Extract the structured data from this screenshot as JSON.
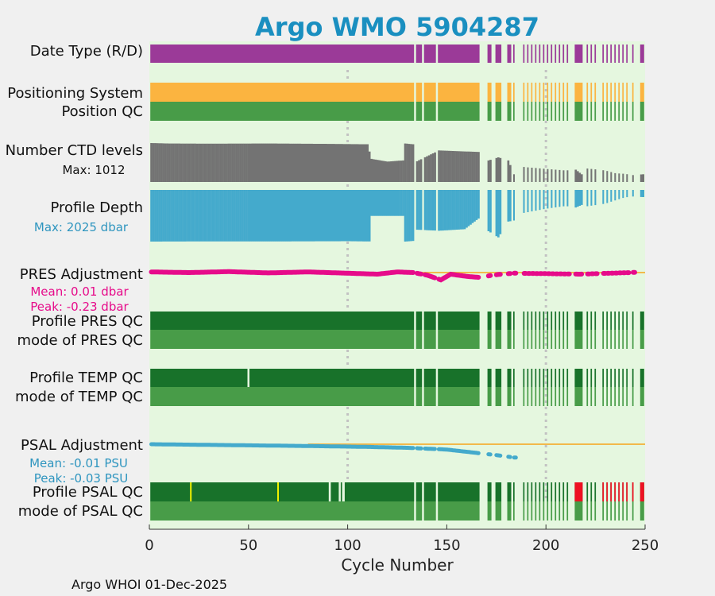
{
  "chart_data": {
    "type": "bar",
    "title": "Argo WMO 5904287",
    "xlabel": "Cycle Number",
    "xlim": [
      0,
      250
    ],
    "xticks": [
      0,
      50,
      100,
      150,
      200,
      250
    ],
    "vlines_at": [
      100,
      200
    ],
    "footer": "Argo WHOI 01-Dec-2025",
    "tracks": [
      {
        "key": "date_type",
        "label": "Date Type (R/D)",
        "color": "#9b3a98"
      },
      {
        "key": "positioning_system",
        "label": "Positioning System",
        "color": "#fbb440"
      },
      {
        "key": "position_qc",
        "label": "Position QC",
        "color": "#489c48"
      },
      {
        "key": "ctd_levels",
        "label": "Number CTD levels",
        "annotation": "Max: 1012",
        "color": "#737373",
        "max": 1012
      },
      {
        "key": "profile_depth",
        "label": "Profile Depth",
        "annotation": "Max: 2025 dbar",
        "annotation_color": "#2e95bf",
        "color": "#44aacc",
        "max": 2025
      },
      {
        "key": "pres_adjustment",
        "label": "PRES Adjustment",
        "annotation_lines": [
          "Mean: 0.01 dbar",
          "Peak: -0.23 dbar"
        ],
        "annotation_color": "#e60b8a",
        "color": "#e60b8a",
        "reference_color": "#f2b94b",
        "mean": 0.01,
        "peak": -0.23
      },
      {
        "key": "profile_pres_qc",
        "label": "Profile PRES QC",
        "color": "#18722a"
      },
      {
        "key": "mode_pres_qc",
        "label": "mode of PRES QC",
        "color": "#489c48"
      },
      {
        "key": "profile_temp_qc",
        "label": "Profile TEMP QC",
        "color": "#18722a"
      },
      {
        "key": "mode_temp_qc",
        "label": "mode of TEMP QC",
        "color": "#489c48"
      },
      {
        "key": "psal_adjustment",
        "label": "PSAL Adjustment",
        "annotation_lines": [
          "Mean: -0.01 PSU",
          "Peak: -0.03 PSU"
        ],
        "annotation_color": "#2e95bf",
        "color": "#44aacc",
        "reference_color": "#f2b94b",
        "mean": -0.01,
        "peak": -0.03
      },
      {
        "key": "profile_psal_qc",
        "label": "Profile PSAL QC",
        "color": "#18722a",
        "flag_colors": {
          "yellow": "#f0f000",
          "red": "#ee1122"
        }
      },
      {
        "key": "mode_psal_qc",
        "label": "mode of PSAL QC",
        "color": "#489c48"
      }
    ],
    "cycle_segments": [
      [
        1,
        133
      ],
      [
        135,
        137
      ],
      [
        139,
        144
      ],
      [
        146,
        166
      ],
      [
        171,
        172
      ],
      [
        175,
        177
      ],
      [
        181,
        182
      ],
      [
        184,
        184
      ],
      [
        189,
        189
      ],
      [
        191,
        191
      ],
      [
        193,
        193
      ],
      [
        195,
        195
      ],
      [
        197,
        197
      ],
      [
        199,
        199
      ],
      [
        201,
        201
      ],
      [
        203,
        203
      ],
      [
        205,
        205
      ],
      [
        207,
        207
      ],
      [
        209,
        209
      ],
      [
        211,
        211
      ],
      [
        215,
        218
      ],
      [
        221,
        221
      ],
      [
        223,
        223
      ],
      [
        225,
        225
      ],
      [
        229,
        229
      ],
      [
        231,
        231
      ],
      [
        233,
        233
      ],
      [
        235,
        235
      ],
      [
        237,
        237
      ],
      [
        239,
        239
      ],
      [
        241,
        241
      ],
      [
        244,
        244
      ],
      [
        248,
        249
      ]
    ],
    "temp_qc_gaps": [
      50
    ],
    "psal_qc_gaps": [
      21,
      65,
      91,
      96,
      98
    ],
    "psal_qc_yellow": [
      21,
      65
    ],
    "psal_qc_red_ranges": [
      [
        215,
        218
      ],
      [
        229,
        250
      ]
    ],
    "ctd_levels_series": [
      [
        1,
        1012
      ],
      [
        10,
        1000
      ],
      [
        30,
        995
      ],
      [
        60,
        1000
      ],
      [
        90,
        990
      ],
      [
        110,
        980
      ],
      [
        112,
        600
      ],
      [
        120,
        530
      ],
      [
        128,
        560
      ],
      [
        129,
        1000
      ],
      [
        133,
        980
      ],
      [
        135,
        540
      ],
      [
        146,
        820
      ],
      [
        166,
        780
      ],
      [
        171,
        560
      ],
      [
        176,
        640
      ],
      [
        181,
        560
      ],
      [
        184,
        200
      ],
      [
        189,
        390
      ],
      [
        200,
        340
      ],
      [
        210,
        300
      ],
      [
        215,
        320
      ],
      [
        218,
        200
      ],
      [
        221,
        350
      ],
      [
        230,
        300
      ],
      [
        235,
        230
      ],
      [
        240,
        210
      ],
      [
        244,
        180
      ],
      [
        249,
        200
      ]
    ],
    "profile_depth_series": [
      [
        1,
        2025
      ],
      [
        20,
        2020
      ],
      [
        60,
        2020
      ],
      [
        100,
        2010
      ],
      [
        111,
        2020
      ],
      [
        112,
        1020
      ],
      [
        128,
        1020
      ],
      [
        129,
        2025
      ],
      [
        133,
        2000
      ],
      [
        135,
        1560
      ],
      [
        146,
        1600
      ],
      [
        159,
        1540
      ],
      [
        166,
        1120
      ],
      [
        171,
        1620
      ],
      [
        176,
        1860
      ],
      [
        181,
        1240
      ],
      [
        184,
        1200
      ],
      [
        189,
        900
      ],
      [
        200,
        740
      ],
      [
        210,
        630
      ],
      [
        215,
        690
      ],
      [
        218,
        590
      ],
      [
        221,
        640
      ],
      [
        230,
        540
      ],
      [
        235,
        410
      ],
      [
        240,
        290
      ],
      [
        244,
        260
      ],
      [
        249,
        280
      ]
    ],
    "pres_adjustment_series": [
      [
        1,
        0.02
      ],
      [
        20,
        0.0
      ],
      [
        40,
        0.03
      ],
      [
        60,
        -0.01
      ],
      [
        80,
        0.02
      ],
      [
        100,
        -0.02
      ],
      [
        115,
        -0.05
      ],
      [
        125,
        0.02
      ],
      [
        133,
        0.0
      ],
      [
        140,
        -0.08
      ],
      [
        147,
        -0.23
      ],
      [
        152,
        -0.05
      ],
      [
        160,
        -0.12
      ],
      [
        166,
        -0.15
      ],
      [
        176,
        -0.06
      ],
      [
        184,
        -0.02
      ],
      [
        217,
        -0.05
      ],
      [
        247,
        0.01
      ]
    ],
    "psal_adjustment_series": [
      [
        1,
        0.0
      ],
      [
        40,
        -0.002
      ],
      [
        80,
        -0.004
      ],
      [
        110,
        -0.006
      ],
      [
        130,
        -0.008
      ],
      [
        150,
        -0.012
      ],
      [
        166,
        -0.02
      ],
      [
        176,
        -0.025
      ],
      [
        184,
        -0.03
      ]
    ]
  }
}
